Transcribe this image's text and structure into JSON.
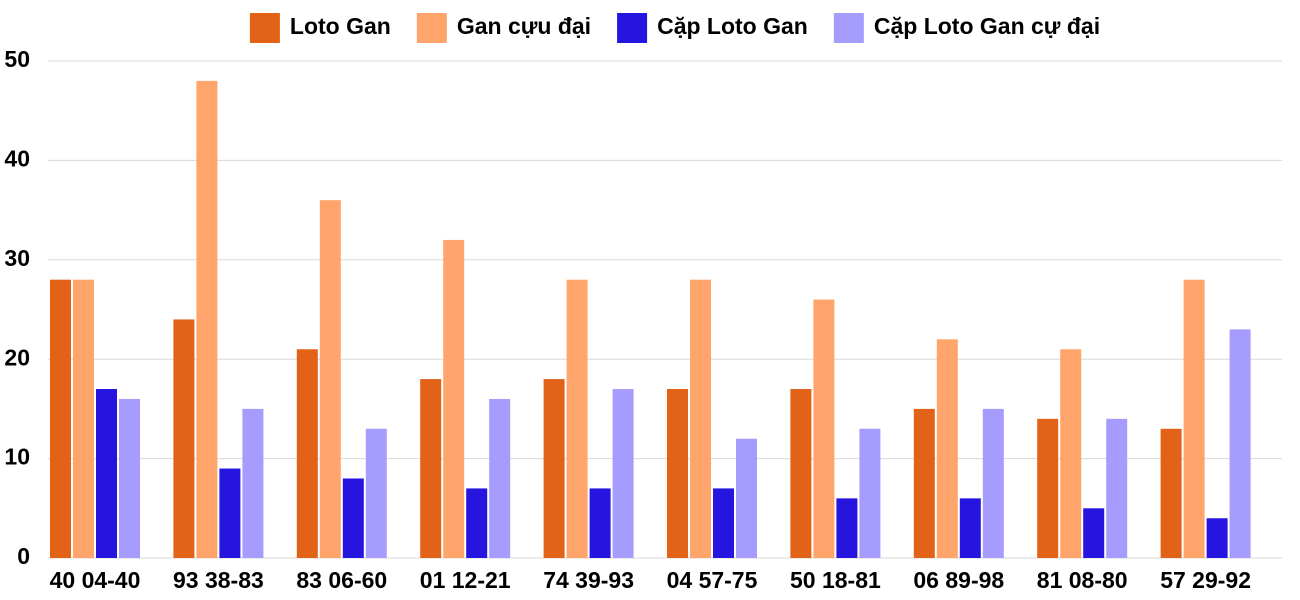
{
  "chart_data": {
    "type": "bar",
    "categories": [
      "40 04-40",
      "93 38-83",
      "83 06-60",
      "01 12-21",
      "74 39-93",
      "04 57-75",
      "50 18-81",
      "06 89-98",
      "81 08-80",
      "57 29-92"
    ],
    "series": [
      {
        "name": "Loto Gan",
        "color": "#e26218",
        "values": [
          28,
          24,
          21,
          18,
          18,
          17,
          17,
          15,
          14,
          13
        ]
      },
      {
        "name": "Gan cựu đại",
        "color": "#ffa56c",
        "values": [
          28,
          48,
          36,
          32,
          28,
          28,
          26,
          22,
          21,
          28
        ]
      },
      {
        "name": "Cặp Loto Gan",
        "color": "#2614df",
        "values": [
          17,
          9,
          8,
          7,
          7,
          7,
          6,
          6,
          5,
          4
        ]
      },
      {
        "name": "Cặp Loto Gan cự đại",
        "color": "#a59cfd",
        "values": [
          16,
          15,
          13,
          16,
          17,
          12,
          13,
          15,
          14,
          23
        ]
      }
    ],
    "ylim": [
      0,
      50
    ],
    "yticks": [
      0,
      10,
      20,
      30,
      40,
      50
    ],
    "grid": true,
    "legend": "top"
  }
}
